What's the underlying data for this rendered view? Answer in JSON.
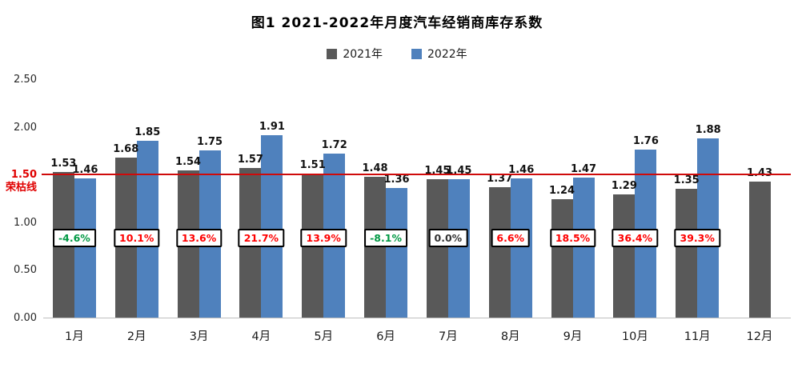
{
  "title": "图1  2021-2022年月度汽车经销商库存系数",
  "legend": {
    "items": [
      {
        "label": "2021年",
        "color": "#595959"
      },
      {
        "label": "2022年",
        "color": "#4F81BD"
      }
    ]
  },
  "axis": {
    "ticks": [
      {
        "label": "0.00",
        "value": 0
      },
      {
        "label": "0.50",
        "value": 0.5
      },
      {
        "label": "1.00",
        "value": 1
      },
      {
        "label": "1.50",
        "value": 1.5,
        "red": true,
        "sublabel": "荣枯线"
      },
      {
        "label": "2.00",
        "value": 2
      },
      {
        "label": "2.50",
        "value": 2.5
      }
    ],
    "redline": {
      "value": 1.5,
      "color": "#cf0a0a",
      "label": "1.50",
      "sublabel": "荣枯线"
    }
  },
  "chart_data": {
    "type": "bar",
    "title": "图1 2021-2022年月度汽车经销商库存系数",
    "categories": [
      "1月",
      "2月",
      "3月",
      "4月",
      "5月",
      "6月",
      "7月",
      "8月",
      "9月",
      "10月",
      "11月",
      "12月"
    ],
    "series": [
      {
        "name": "2021年",
        "color": "#595959",
        "values": [
          1.53,
          1.68,
          1.54,
          1.57,
          1.51,
          1.48,
          1.45,
          1.37,
          1.24,
          1.29,
          1.35,
          1.43
        ]
      },
      {
        "name": "2022年",
        "color": "#4F81BD",
        "values": [
          1.46,
          1.85,
          1.75,
          1.91,
          1.72,
          1.36,
          1.45,
          1.46,
          1.47,
          1.76,
          1.88,
          null
        ]
      }
    ],
    "ylim": [
      0,
      2.5
    ],
    "grid": false,
    "legend_position": "top",
    "threshold_line": {
      "value": 1.5,
      "label": "荣枯线"
    },
    "annotations": [
      {
        "text": "-4.6%",
        "color": "#009944"
      },
      {
        "text": "10.1%",
        "color": "#ff0000"
      },
      {
        "text": "13.6%",
        "color": "#ff0000"
      },
      {
        "text": "21.7%",
        "color": "#ff0000"
      },
      {
        "text": "13.9%",
        "color": "#ff0000"
      },
      {
        "text": "-8.1%",
        "color": "#009944"
      },
      {
        "text": "0.0%",
        "color": "#333333"
      },
      {
        "text": "6.6%",
        "color": "#ff0000"
      },
      {
        "text": "18.5%",
        "color": "#ff0000"
      },
      {
        "text": "36.4%",
        "color": "#ff0000"
      },
      {
        "text": "39.3%",
        "color": "#ff0000"
      },
      null
    ]
  }
}
